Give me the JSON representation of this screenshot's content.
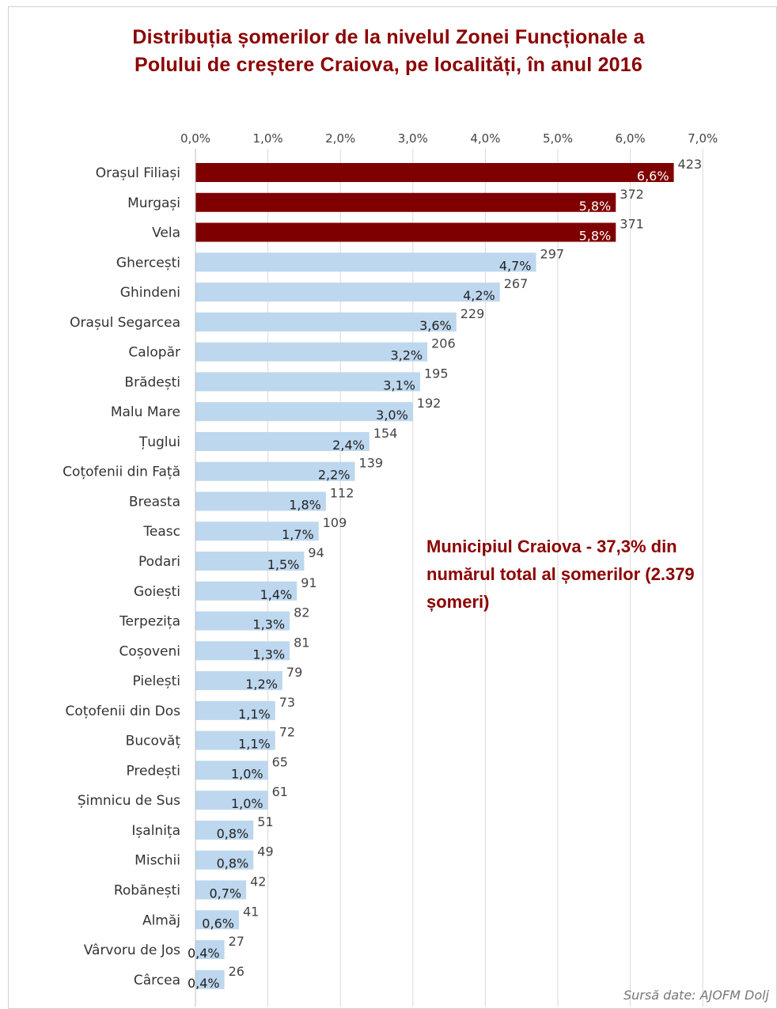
{
  "title_lines": [
    "Distribuția șomerilor de la nivelul Zonei Funcționale a",
    "Polului de creștere Craiova, pe localități, în anul 2016"
  ],
  "annotation_lines": [
    "Municipiul Craiova - 37,3% din",
    "numărul total al șomerilor (2.379",
    "șomeri)"
  ],
  "source": "Sursă date: AJOFM Dolj",
  "colors": {
    "highlight": "#7f0000",
    "default": "#bdd7ee",
    "grid": "#d9d9d9"
  },
  "chart_data": {
    "type": "bar",
    "orientation": "horizontal",
    "xlim": [
      0,
      7
    ],
    "ticks": [
      "0,0%",
      "1,0%",
      "2,0%",
      "3,0%",
      "4,0%",
      "5,0%",
      "6,0%",
      "7,0%"
    ],
    "grid": true,
    "categories": [
      "Orașul Filiași",
      "Murgași",
      "Vela",
      "Ghercești",
      "Ghindeni",
      "Orașul Segarcea",
      "Calopăr",
      "Brădești",
      "Malu Mare",
      "Țuglui",
      "Coțofenii din Față",
      "Breasta",
      "Teasc",
      "Podari",
      "Goiești",
      "Terpezița",
      "Coșoveni",
      "Pielești",
      "Coțofenii din Dos",
      "Bucovăț",
      "Predești",
      "Șimnicu de Sus",
      "Ișalnița",
      "Mischii",
      "Robănești",
      "Almăj",
      "Vârvoru de Jos",
      "Cârcea"
    ],
    "values": [
      6.6,
      5.8,
      5.8,
      4.7,
      4.2,
      3.6,
      3.2,
      3.1,
      3.0,
      2.4,
      2.2,
      1.8,
      1.7,
      1.5,
      1.4,
      1.3,
      1.3,
      1.2,
      1.1,
      1.1,
      1.0,
      1.0,
      0.8,
      0.8,
      0.7,
      0.6,
      0.4,
      0.4
    ],
    "value_labels": [
      "6,6%",
      "5,8%",
      "5,8%",
      "4,7%",
      "4,2%",
      "3,6%",
      "3,2%",
      "3,1%",
      "3,0%",
      "2,4%",
      "2,2%",
      "1,8%",
      "1,7%",
      "1,5%",
      "1,4%",
      "1,3%",
      "1,3%",
      "1,2%",
      "1,1%",
      "1,1%",
      "1,0%",
      "1,0%",
      "0,8%",
      "0,8%",
      "0,7%",
      "0,6%",
      "0,4%",
      "0,4%"
    ],
    "counts": [
      423,
      372,
      371,
      297,
      267,
      229,
      206,
      195,
      192,
      154,
      139,
      112,
      109,
      94,
      91,
      82,
      81,
      79,
      73,
      72,
      65,
      61,
      51,
      49,
      42,
      41,
      27,
      26
    ],
    "highlighted": [
      0,
      1,
      2
    ]
  }
}
